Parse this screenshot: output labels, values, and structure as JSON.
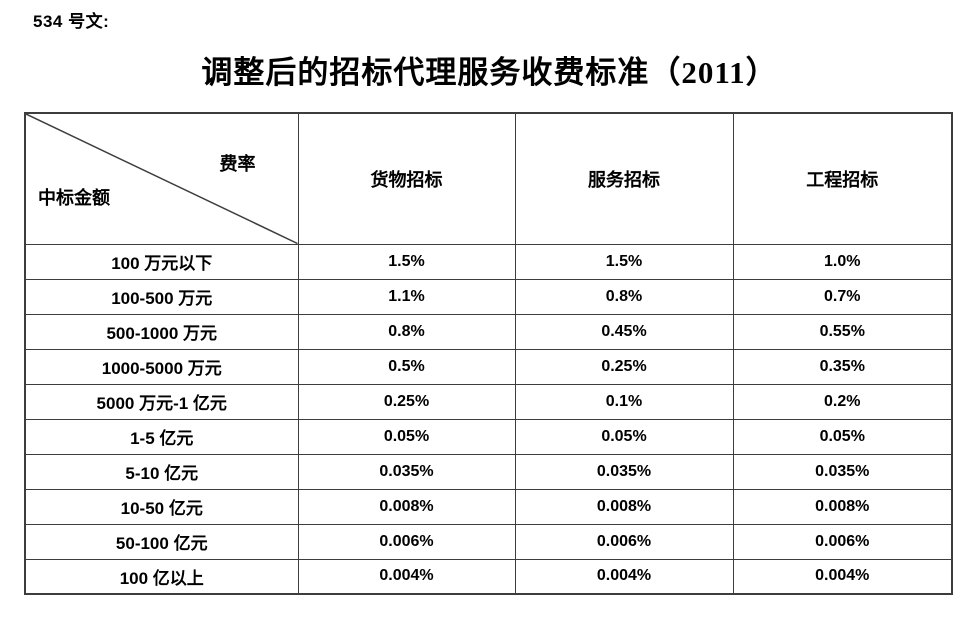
{
  "doc_label": "534 号文:",
  "title": "调整后的招标代理服务收费标准（2011）",
  "colors": {
    "background": "#ffffff",
    "text": "#000000",
    "table_border": "#3d3d3d"
  },
  "table": {
    "corner": {
      "top_right": "费率",
      "bottom_left": "中标金额"
    },
    "columns": [
      "货物招标",
      "服务招标",
      "工程招标"
    ],
    "rows": [
      {
        "label": "100 万元以下",
        "values": [
          "1.5%",
          "1.5%",
          "1.0%"
        ]
      },
      {
        "label": "100-500 万元",
        "values": [
          "1.1%",
          "0.8%",
          "0.7%"
        ]
      },
      {
        "label": "500-1000 万元",
        "values": [
          "0.8%",
          "0.45%",
          "0.55%"
        ]
      },
      {
        "label": "1000-5000 万元",
        "values": [
          "0.5%",
          "0.25%",
          "0.35%"
        ]
      },
      {
        "label": "5000 万元-1 亿元",
        "values": [
          "0.25%",
          "0.1%",
          "0.2%"
        ]
      },
      {
        "label": "1-5 亿元",
        "values": [
          "0.05%",
          "0.05%",
          "0.05%"
        ]
      },
      {
        "label": "5-10 亿元",
        "values": [
          "0.035%",
          "0.035%",
          "0.035%"
        ]
      },
      {
        "label": "10-50 亿元",
        "values": [
          "0.008%",
          "0.008%",
          "0.008%"
        ]
      },
      {
        "label": "50-100 亿元",
        "values": [
          "0.006%",
          "0.006%",
          "0.006%"
        ]
      },
      {
        "label": "100 亿以上",
        "values": [
          "0.004%",
          "0.004%",
          "0.004%"
        ]
      }
    ]
  }
}
